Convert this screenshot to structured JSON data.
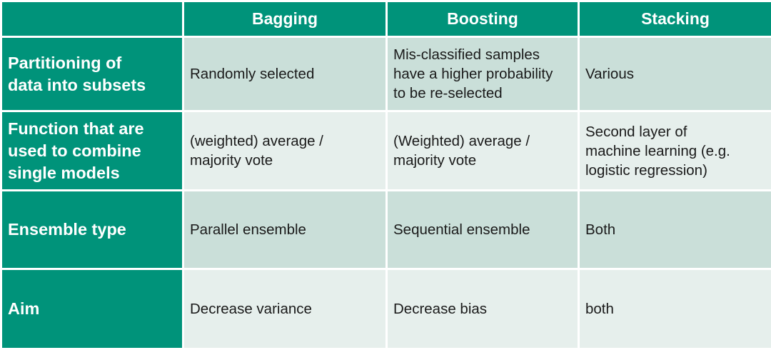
{
  "table": {
    "columns": [
      "",
      "Bagging",
      "Boosting",
      "Stacking"
    ],
    "rows": [
      {
        "label": "Partitioning of\ndata into subsets",
        "cells": [
          "Randomly selected",
          "Mis-classified samples\nhave a higher probability\nto be re-selected",
          "Various"
        ]
      },
      {
        "label": "Function that are\nused to combine\nsingle models",
        "cells": [
          "(weighted) average /\nmajority vote",
          "(Weighted) average /\nmajority vote",
          "Second layer of\nmachine learning (e.g.\nlogistic regression)"
        ]
      },
      {
        "label": "Ensemble type",
        "cells": [
          "Parallel ensemble",
          "Sequential ensemble",
          "Both"
        ]
      },
      {
        "label": "Aim",
        "cells": [
          "Decrease variance",
          "Decrease bias",
          "both"
        ]
      }
    ]
  },
  "colors": {
    "header": "#00937a",
    "row_odd": "#cadfd9",
    "row_even": "#e6efec"
  }
}
